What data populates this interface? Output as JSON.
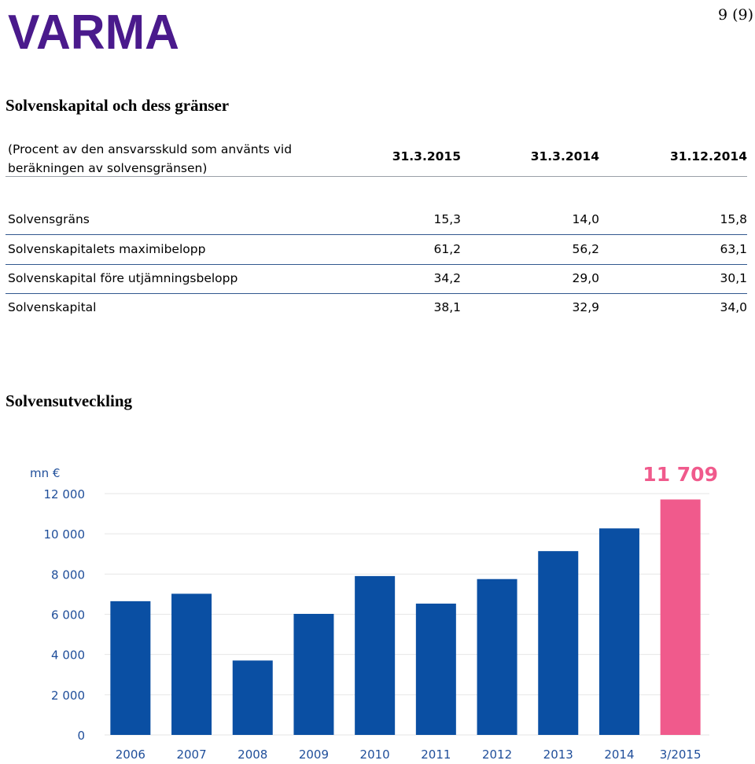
{
  "header": {
    "logo_text": "VARMA",
    "page_number": "9 (9)"
  },
  "section1": {
    "title": "Solvenskapital och dess gränser",
    "table": {
      "unit_line1": "(Procent av den ansvarsskuld som använts vid",
      "unit_line2": "beräkningen av solvensgränsen)",
      "columns": [
        "31.3.2015",
        "31.3.2014",
        "31.12.2014"
      ],
      "rows": [
        {
          "label": "Solvensgräns",
          "values": [
            "15,3",
            "14,0",
            "15,8"
          ]
        },
        {
          "label": "Solvenskapitalets maximibelopp",
          "values": [
            "61,2",
            "56,2",
            "63,1"
          ]
        },
        {
          "label": "Solvenskapital före utjämningsbelopp",
          "values": [
            "34,2",
            "29,0",
            "30,1"
          ]
        },
        {
          "label": "Solvenskapital",
          "values": [
            "38,1",
            "32,9",
            "34,0"
          ]
        }
      ]
    }
  },
  "section2": {
    "title": "Solvensutveckling"
  },
  "colors": {
    "logo": "#4a1a8c",
    "bar": "#0a4fa3",
    "highlight": "#f05a8c",
    "axis_text": "#1f4e9a",
    "grid": "#e6e6e6",
    "table_rule": "#31588f"
  },
  "chart_data": {
    "type": "bar",
    "unit_label": "mn €",
    "categories": [
      "2006",
      "2007",
      "2008",
      "2009",
      "2010",
      "2011",
      "2012",
      "2013",
      "2014",
      "3/2015"
    ],
    "values": [
      6650,
      7020,
      3700,
      6020,
      7900,
      6530,
      7750,
      9140,
      10270,
      11709
    ],
    "highlight_index": 9,
    "highlight_label": "11 709",
    "ylim": [
      0,
      12000
    ],
    "yticks": [
      0,
      2000,
      4000,
      6000,
      8000,
      10000,
      12000
    ],
    "ytick_labels": [
      "0",
      "2 000",
      "4 000",
      "6 000",
      "8 000",
      "10 000",
      "12 000"
    ],
    "grid": true
  }
}
